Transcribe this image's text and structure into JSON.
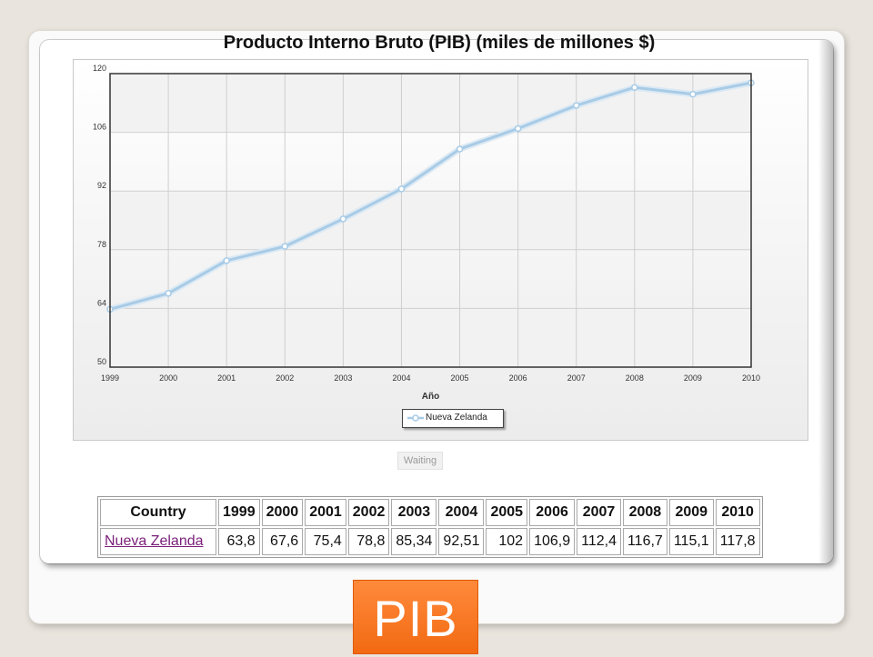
{
  "chart_data": {
    "type": "line",
    "title": "Producto Interno Bruto (PIB) (miles de millones $)",
    "xlabel": "Año",
    "ylabel": "",
    "categories": [
      "1999",
      "2000",
      "2001",
      "2002",
      "2003",
      "2004",
      "2005",
      "2006",
      "2007",
      "2008",
      "2009",
      "2010"
    ],
    "series": [
      {
        "name": "Nueva Zelanda",
        "values": [
          63.8,
          67.6,
          75.4,
          78.8,
          85.34,
          92.51,
          102,
          106.9,
          112.4,
          116.7,
          115.1,
          117.8
        ],
        "color": "#a8cbe6"
      }
    ],
    "ylim": [
      50,
      120
    ],
    "yticks": [
      50,
      64,
      78,
      92,
      106,
      120
    ],
    "grid": true,
    "legend": "bottom-center"
  },
  "status": {
    "waiting": "Waiting"
  },
  "table": {
    "headers": [
      "Country",
      "1999",
      "2000",
      "2001",
      "2002",
      "2003",
      "2004",
      "2005",
      "2006",
      "2007",
      "2008",
      "2009",
      "2010"
    ],
    "rows": [
      [
        "Nueva Zelanda",
        "63,8",
        "67,6",
        "75,4",
        "78,8",
        "85,34",
        "92,51",
        "102",
        "106,9",
        "112,4",
        "116,7",
        "115,1",
        "117,8"
      ]
    ]
  },
  "badge": {
    "label": "PIB"
  }
}
